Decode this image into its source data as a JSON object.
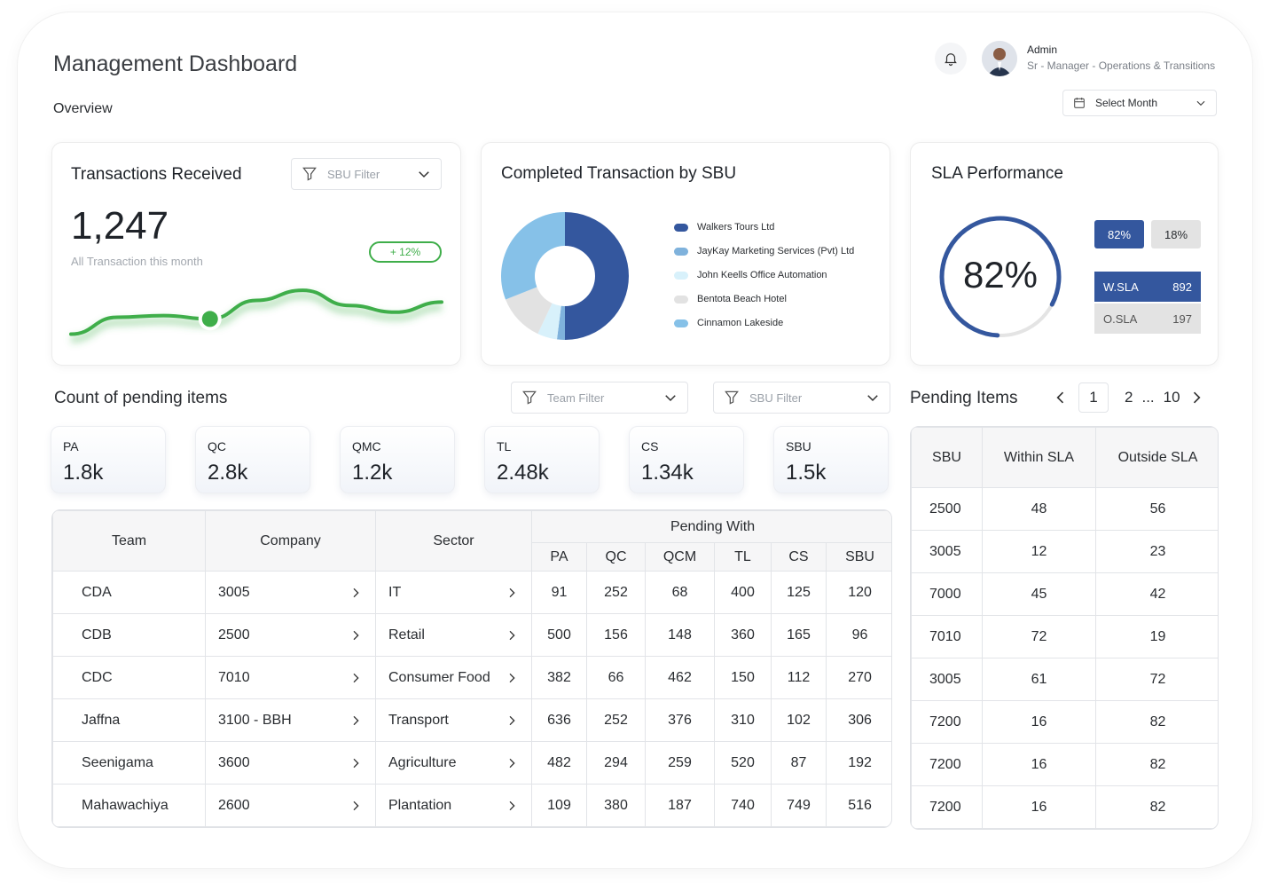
{
  "header": {
    "title": "Management Dashboard",
    "subtitle": "Overview",
    "user_name": "Admin",
    "user_role": "Sr - Manager - Operations & Transitions",
    "month_select": "Select Month"
  },
  "transactions": {
    "title": "Transactions Received",
    "filter": "SBU Filter",
    "value": "1,247",
    "caption": "All Transaction this month",
    "change": "+ 12%",
    "accent": "#3fae4a"
  },
  "completed": {
    "title": "Completed Transaction by SBU",
    "legend": [
      {
        "name": "Walkers Tours Ltd",
        "color": "#34579e"
      },
      {
        "name": "JayKay Marketing Services (Pvt) Ltd",
        "color": "#7fb2dc"
      },
      {
        "name": "John Keells Office Automation",
        "color": "#d8f1fb"
      },
      {
        "name": "Bentota Beach Hotel",
        "color": "#e2e2e2"
      },
      {
        "name": "Cinnamon Lakeside",
        "color": "#86c1e8"
      }
    ]
  },
  "sla": {
    "title": "SLA Performance",
    "percent_label": "82%",
    "within_pct": "82%",
    "outside_pct": "18%",
    "w_label": "W.SLA",
    "w_value": "892",
    "o_label": "O.SLA",
    "o_value": "197",
    "fraction": 0.82,
    "colors": {
      "primary": "#34579e",
      "secondary": "#e4e4e4"
    }
  },
  "pending_counts": {
    "title": "Count of pending items",
    "team_filter": "Team Filter",
    "sbu_filter": "SBU Filter",
    "stats": [
      {
        "key": "PA",
        "value": "1.8k"
      },
      {
        "key": "QC",
        "value": "2.8k"
      },
      {
        "key": "QMC",
        "value": "1.2k"
      },
      {
        "key": "TL",
        "value": "2.48k"
      },
      {
        "key": "CS",
        "value": "1.34k"
      },
      {
        "key": "SBU",
        "value": "1.5k"
      }
    ]
  },
  "main_table": {
    "headers": {
      "team": "Team",
      "company": "Company",
      "sector": "Sector",
      "pending_with": "Pending With"
    },
    "sub_headers": [
      "PA",
      "QC",
      "QCM",
      "TL",
      "CS",
      "SBU"
    ],
    "rows": [
      {
        "team": "CDA",
        "company": "3005",
        "sector": "IT",
        "vals": [
          "91",
          "252",
          "68",
          "400",
          "125",
          "120"
        ]
      },
      {
        "team": "CDB",
        "company": "2500",
        "sector": "Retail",
        "vals": [
          "500",
          "156",
          "148",
          "360",
          "165",
          "96"
        ]
      },
      {
        "team": "CDC",
        "company": "7010",
        "sector": "Consumer Food",
        "vals": [
          "382",
          "66",
          "462",
          "150",
          "112",
          "270"
        ]
      },
      {
        "team": "Jaffna",
        "company": "3100 - BBH",
        "sector": "Transport",
        "vals": [
          "636",
          "252",
          "376",
          "310",
          "102",
          "306"
        ]
      },
      {
        "team": "Seenigama",
        "company": "3600",
        "sector": "Agriculture",
        "vals": [
          "482",
          "294",
          "259",
          "520",
          "87",
          "192"
        ]
      },
      {
        "team": "Mahawachiya",
        "company": "2600",
        "sector": "Plantation",
        "vals": [
          "109",
          "380",
          "187",
          "740",
          "749",
          "516"
        ]
      }
    ]
  },
  "pending_items": {
    "title": "Pending Items",
    "pages": {
      "current": "1",
      "next": "2",
      "ellipsis": "...",
      "last": "10"
    },
    "headers": [
      "SBU",
      "Within SLA",
      "Outside SLA"
    ],
    "rows": [
      [
        "2500",
        "48",
        "56"
      ],
      [
        "3005",
        "12",
        "23"
      ],
      [
        "7000",
        "45",
        "42"
      ],
      [
        "7010",
        "72",
        "19"
      ],
      [
        "3005",
        "61",
        "72"
      ],
      [
        "7200",
        "16",
        "82"
      ],
      [
        "7200",
        "16",
        "82"
      ],
      [
        "7200",
        "16",
        "82"
      ]
    ]
  },
  "chart_data": [
    {
      "type": "line",
      "title": "",
      "x": [
        0,
        1,
        2,
        3,
        4,
        5,
        6,
        7,
        8
      ],
      "series": [
        {
          "values": [
            10,
            30,
            32,
            28,
            50,
            62,
            44,
            36,
            48
          ]
        }
      ],
      "highlight_index": 3,
      "ylim": [
        0,
        80
      ]
    },
    {
      "type": "pie",
      "title": "",
      "categories": [
        "Walkers Tours Ltd",
        "JayKay Marketing Services (Pvt) Ltd",
        "John Keells Office Automation",
        "Bentota Beach Hotel",
        "Cinnamon Lakeside"
      ],
      "values": [
        50,
        2,
        5,
        12,
        31
      ]
    }
  ]
}
